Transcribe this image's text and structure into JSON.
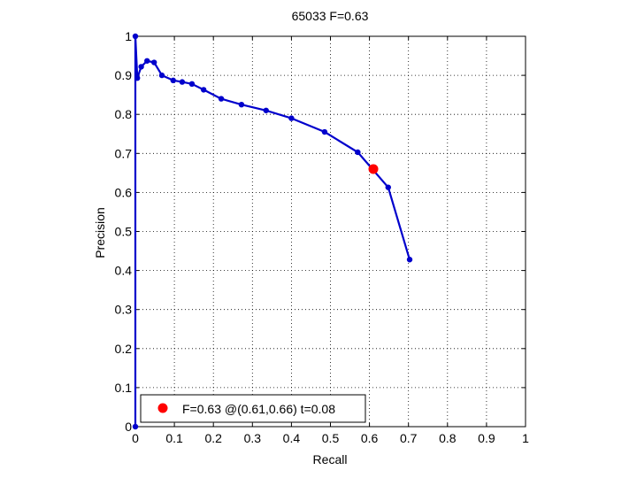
{
  "chart_data": {
    "type": "line",
    "title": "65033 F=0.63",
    "xlabel": "Recall",
    "ylabel": "Precision",
    "xlim": [
      0,
      1
    ],
    "ylim": [
      0,
      1
    ],
    "grid": true,
    "xticks": [
      "0",
      "0.1",
      "0.2",
      "0.3",
      "0.4",
      "0.5",
      "0.6",
      "0.7",
      "0.8",
      "0.9",
      "1"
    ],
    "yticks": [
      "0",
      "0.1",
      "0.2",
      "0.3",
      "0.4",
      "0.5",
      "0.6",
      "0.7",
      "0.8",
      "0.9",
      "1"
    ],
    "series": [
      {
        "color": "#0000cc",
        "x": [
          0.0,
          0.0,
          0.005,
          0.015,
          0.03,
          0.048,
          0.068,
          0.097,
          0.12,
          0.145,
          0.175,
          0.22,
          0.272,
          0.335,
          0.4,
          0.485,
          0.57,
          0.648,
          0.703
        ],
        "y": [
          0.0,
          1.0,
          0.893,
          0.922,
          0.937,
          0.933,
          0.9,
          0.887,
          0.883,
          0.878,
          0.863,
          0.84,
          0.825,
          0.81,
          0.79,
          0.755,
          0.703,
          0.613,
          0.428
        ]
      }
    ],
    "highlight": {
      "color": "#ff0000",
      "x": 0.61,
      "y": 0.66
    },
    "legend": {
      "position": "bottom-left",
      "text": "F=0.63 @(0.61,0.66) t=0.08"
    }
  }
}
